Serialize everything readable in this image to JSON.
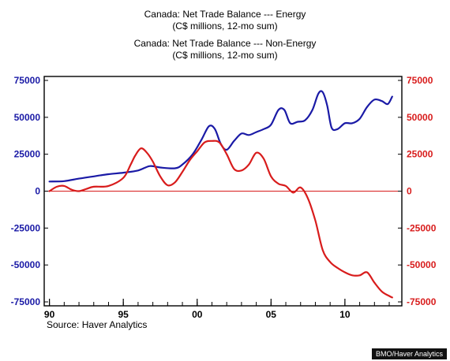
{
  "chart_data": {
    "type": "line",
    "titles": [
      {
        "text": "Canada: Net Trade Balance --- Energy",
        "color": "#1a1aa6"
      },
      {
        "text": "(C$ millions, 12-mo sum)",
        "color": "#1a1aa6"
      },
      {
        "text": "Canada: Net Trade Balance --- Non-Energy",
        "color": "#d81c1c"
      },
      {
        "text": "(C$ millions, 12-mo sum)",
        "color": "#d81c1c"
      }
    ],
    "x_ticks": [
      "90",
      "95",
      "00",
      "05",
      "10"
    ],
    "x_tick_years": [
      1990,
      1995,
      2000,
      2005,
      2010
    ],
    "xlim": [
      1989.7,
      2013.8
    ],
    "ylim": [
      -75000,
      75000
    ],
    "y_ticks": [
      75000,
      50000,
      25000,
      0,
      -25000,
      -50000,
      -75000
    ],
    "y_tick_labels": [
      "75000",
      "50000",
      "25000",
      "0",
      "-25000",
      "-50000",
      "-75000"
    ],
    "zero_line_color": "#d81c1c",
    "series": [
      {
        "key": "energy",
        "color": "#1a1aa6",
        "axis": "left",
        "x": [
          1990.0,
          1991.0,
          1992.0,
          1993.0,
          1994.0,
          1995.0,
          1996.0,
          1996.8,
          1997.5,
          1998.5,
          1999.0,
          1999.7,
          2000.3,
          2000.8,
          2001.2,
          2001.6,
          2002.0,
          2002.5,
          2003.0,
          2003.5,
          2004.0,
          2004.5,
          2005.0,
          2005.5,
          2005.9,
          2006.3,
          2006.8,
          2007.3,
          2007.8,
          2008.2,
          2008.5,
          2008.8,
          2009.1,
          2009.5,
          2010.0,
          2010.5,
          2011.0,
          2011.5,
          2012.0,
          2012.5,
          2012.9,
          2013.2
        ],
        "y": [
          6500,
          6800,
          8500,
          10000,
          11500,
          12500,
          14000,
          17000,
          16000,
          15500,
          18000,
          25000,
          35000,
          44000,
          42000,
          32000,
          28000,
          34000,
          39000,
          38000,
          40000,
          42000,
          45000,
          55000,
          55000,
          46000,
          47000,
          48000,
          55000,
          66000,
          67000,
          58000,
          43000,
          42000,
          46000,
          46000,
          49000,
          57000,
          62000,
          61000,
          59000,
          64000
        ]
      },
      {
        "key": "non_energy",
        "color": "#d81c1c",
        "axis": "right",
        "x": [
          1990.0,
          1990.5,
          1991.0,
          1991.5,
          1992.0,
          1992.5,
          1993.0,
          1994.0,
          1995.0,
          1995.5,
          1995.8,
          1996.2,
          1996.6,
          1997.0,
          1997.5,
          1998.0,
          1998.5,
          1999.0,
          1999.5,
          2000.0,
          2000.5,
          2001.0,
          2001.5,
          2002.0,
          2002.5,
          2003.0,
          2003.5,
          2004.0,
          2004.5,
          2005.0,
          2005.5,
          2006.0,
          2006.5,
          2007.0,
          2007.5,
          2008.0,
          2008.5,
          2009.0,
          2009.5,
          2010.0,
          2010.5,
          2011.0,
          2011.5,
          2012.0,
          2012.5,
          2013.0,
          2013.2
        ],
        "y": [
          0,
          3000,
          3500,
          1000,
          0,
          1500,
          3000,
          3500,
          9000,
          18000,
          24000,
          29000,
          26000,
          20000,
          10000,
          4000,
          6000,
          13000,
          21000,
          27000,
          33000,
          34000,
          33000,
          25000,
          15000,
          14000,
          18000,
          26000,
          22000,
          10000,
          5000,
          3500,
          -1000,
          2500,
          -5000,
          -20000,
          -40000,
          -48000,
          -52000,
          -55000,
          -57000,
          -57000,
          -55000,
          -62000,
          -68000,
          -71000,
          -72000
        ]
      }
    ],
    "source": "Source: Haver Analytics",
    "watermark": "BMO/Haver Analytics"
  }
}
